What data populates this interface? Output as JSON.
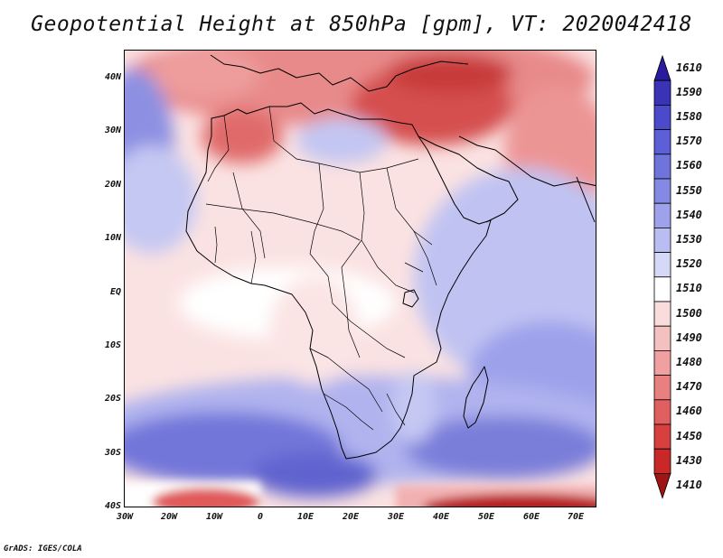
{
  "title": "Geopotential Height at 850hPa [gpm], VT: 2020042418",
  "credit": "GrADS: IGES/COLA",
  "axes": {
    "lat_labels": [
      "40N",
      "30N",
      "20N",
      "10N",
      "EQ",
      "10S",
      "20S",
      "30S",
      "40S"
    ],
    "lon_labels": [
      "30W",
      "20W",
      "10W",
      "0",
      "10E",
      "20E",
      "30E",
      "40E",
      "50E",
      "60E",
      "70E"
    ]
  },
  "colorbar": {
    "levels": [
      "1610",
      "1590",
      "1580",
      "1570",
      "1560",
      "1550",
      "1540",
      "1530",
      "1520",
      "1510",
      "1500",
      "1490",
      "1480",
      "1470",
      "1460",
      "1450",
      "1430",
      "1410"
    ],
    "colors": [
      "#2a1a9e",
      "#3a33b5",
      "#4a4acb",
      "#5c5fd6",
      "#6f74dd",
      "#8489e4",
      "#9ea2ea",
      "#babdf1",
      "#d6d8f7",
      "#ffffff",
      "#fbdcdc",
      "#f5c0c0",
      "#f0a0a0",
      "#e88080",
      "#e06060",
      "#d84040",
      "#c82828",
      "#a01414"
    ]
  }
}
